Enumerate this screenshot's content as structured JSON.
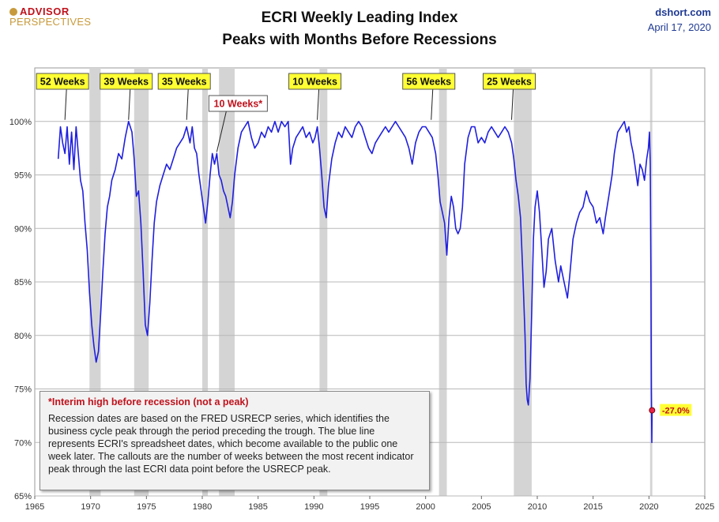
{
  "logo": {
    "line1": "ADVISOR",
    "line2": "PERSPECTIVES"
  },
  "header": {
    "title_line1": "ECRI Weekly Leading Index",
    "title_line2": "Peaks with Months Before Recessions",
    "site": "dshort.com",
    "date": "April 17, 2020"
  },
  "note": {
    "title": "*Interim high before recession (not a peak)",
    "body": "Recession dates are based on the FRED USRECP series, which identifies the business cycle peak through the period preceding the trough. The blue line represents ECRI's spreadsheet dates, which become available to the public one week later. The callouts are the number of weeks between the most recent indicator peak through the last ECRI data point before the USRECP peak."
  },
  "colors": {
    "line": "#1f1fe0",
    "recession": "#d4d4d4",
    "callout_bg": "#ffff33",
    "callout_alt_bg": "#ffffff",
    "callout_alt_text": "#c0121c",
    "last_point": "#e8244a",
    "last_label_bg": "#ffff33",
    "last_label_text": "#c0121c"
  },
  "chart_data": {
    "type": "line",
    "title": "ECRI Weekly Leading Index Peaks with Months Before Recessions",
    "xlim": [
      1965,
      2025
    ],
    "ylim": [
      65,
      105
    ],
    "x_ticks": [
      1965,
      1970,
      1975,
      1980,
      1985,
      1990,
      1995,
      2000,
      2005,
      2010,
      2015,
      2020,
      2025
    ],
    "x_tick_labels": [
      "1965",
      "1970",
      "1975",
      "1980",
      "1985",
      "1990",
      "1995",
      "2000",
      "2005",
      "2010",
      "2015",
      "2020",
      "2025"
    ],
    "y_ticks": [
      65,
      70,
      75,
      80,
      85,
      90,
      95,
      100
    ],
    "y_tick_labels": [
      "65%",
      "70%",
      "75%",
      "80%",
      "85%",
      "90%",
      "95%",
      "100%"
    ],
    "grid": true,
    "recessions": [
      [
        1969.9,
        1970.9
      ],
      [
        1973.9,
        1975.2
      ],
      [
        1980.0,
        1980.5
      ],
      [
        1981.5,
        1982.9
      ],
      [
        1990.5,
        1991.2
      ],
      [
        2001.2,
        2001.9
      ],
      [
        2007.9,
        2009.5
      ],
      [
        2020.1,
        2020.3
      ]
    ],
    "series": [
      {
        "points": [
          [
            1967.1,
            96.5
          ],
          [
            1967.3,
            99.5
          ],
          [
            1967.5,
            98
          ],
          [
            1967.7,
            97
          ],
          [
            1967.9,
            99.5
          ],
          [
            1968.1,
            96
          ],
          [
            1968.3,
            99
          ],
          [
            1968.5,
            95.5
          ],
          [
            1968.7,
            99.5
          ],
          [
            1968.9,
            97
          ],
          [
            1969.1,
            94.5
          ],
          [
            1969.3,
            93.5
          ],
          [
            1969.5,
            90.5
          ],
          [
            1969.7,
            88
          ],
          [
            1969.9,
            84
          ],
          [
            1970.1,
            81
          ],
          [
            1970.3,
            79
          ],
          [
            1970.5,
            77.5
          ],
          [
            1970.7,
            78.5
          ],
          [
            1970.9,
            82
          ],
          [
            1971.1,
            86
          ],
          [
            1971.3,
            89.5
          ],
          [
            1971.5,
            92
          ],
          [
            1971.7,
            93
          ],
          [
            1971.9,
            94.5
          ],
          [
            1972.2,
            95.5
          ],
          [
            1972.5,
            97
          ],
          [
            1972.8,
            96.5
          ],
          [
            1973.1,
            98.5
          ],
          [
            1973.4,
            100
          ],
          [
            1973.7,
            99
          ],
          [
            1973.9,
            96.5
          ],
          [
            1974.1,
            93
          ],
          [
            1974.3,
            93.5
          ],
          [
            1974.5,
            90.5
          ],
          [
            1974.7,
            86
          ],
          [
            1974.9,
            81
          ],
          [
            1975.1,
            80
          ],
          [
            1975.3,
            83
          ],
          [
            1975.5,
            87
          ],
          [
            1975.7,
            90.5
          ],
          [
            1975.9,
            92.5
          ],
          [
            1976.2,
            94
          ],
          [
            1976.5,
            95
          ],
          [
            1976.8,
            96
          ],
          [
            1977.1,
            95.5
          ],
          [
            1977.4,
            96.5
          ],
          [
            1977.7,
            97.5
          ],
          [
            1978.0,
            98
          ],
          [
            1978.3,
            98.5
          ],
          [
            1978.6,
            99.5
          ],
          [
            1978.9,
            98
          ],
          [
            1979.1,
            99.5
          ],
          [
            1979.3,
            97.5
          ],
          [
            1979.5,
            97
          ],
          [
            1979.7,
            95
          ],
          [
            1979.9,
            93.5
          ],
          [
            1980.1,
            92
          ],
          [
            1980.3,
            90.5
          ],
          [
            1980.5,
            92.5
          ],
          [
            1980.7,
            95
          ],
          [
            1980.9,
            97
          ],
          [
            1981.1,
            96
          ],
          [
            1981.3,
            97
          ],
          [
            1981.5,
            95
          ],
          [
            1981.7,
            94.5
          ],
          [
            1981.9,
            93.5
          ],
          [
            1982.1,
            93
          ],
          [
            1982.3,
            92
          ],
          [
            1982.5,
            91
          ],
          [
            1982.7,
            92.5
          ],
          [
            1982.9,
            95
          ],
          [
            1983.2,
            97.5
          ],
          [
            1983.5,
            99
          ],
          [
            1983.8,
            99.5
          ],
          [
            1984.1,
            100
          ],
          [
            1984.4,
            98.5
          ],
          [
            1984.7,
            97.5
          ],
          [
            1985.0,
            98
          ],
          [
            1985.3,
            99
          ],
          [
            1985.6,
            98.5
          ],
          [
            1985.9,
            99.5
          ],
          [
            1986.2,
            99
          ],
          [
            1986.5,
            100
          ],
          [
            1986.8,
            99
          ],
          [
            1987.1,
            100
          ],
          [
            1987.4,
            99.5
          ],
          [
            1987.7,
            100
          ],
          [
            1987.9,
            96
          ],
          [
            1988.1,
            97.5
          ],
          [
            1988.4,
            98.5
          ],
          [
            1988.7,
            99
          ],
          [
            1989.0,
            99.5
          ],
          [
            1989.3,
            98.5
          ],
          [
            1989.6,
            99
          ],
          [
            1989.9,
            98
          ],
          [
            1990.1,
            98.5
          ],
          [
            1990.3,
            99.5
          ],
          [
            1990.5,
            97.5
          ],
          [
            1990.7,
            95
          ],
          [
            1990.9,
            92
          ],
          [
            1991.1,
            91
          ],
          [
            1991.3,
            94
          ],
          [
            1991.6,
            96.5
          ],
          [
            1991.9,
            98
          ],
          [
            1992.2,
            99
          ],
          [
            1992.5,
            98.5
          ],
          [
            1992.8,
            99.5
          ],
          [
            1993.1,
            99
          ],
          [
            1993.4,
            98.5
          ],
          [
            1993.7,
            99.5
          ],
          [
            1994.0,
            100
          ],
          [
            1994.3,
            99.5
          ],
          [
            1994.6,
            98.5
          ],
          [
            1994.9,
            97.5
          ],
          [
            1995.2,
            97
          ],
          [
            1995.5,
            98
          ],
          [
            1995.8,
            98.5
          ],
          [
            1996.1,
            99
          ],
          [
            1996.4,
            99.5
          ],
          [
            1996.7,
            99
          ],
          [
            1997.0,
            99.5
          ],
          [
            1997.3,
            100
          ],
          [
            1997.6,
            99.5
          ],
          [
            1997.9,
            99
          ],
          [
            1998.2,
            98.5
          ],
          [
            1998.5,
            97.5
          ],
          [
            1998.8,
            96
          ],
          [
            1999.1,
            98
          ],
          [
            1999.4,
            99
          ],
          [
            1999.7,
            99.5
          ],
          [
            2000.0,
            99.5
          ],
          [
            2000.3,
            99
          ],
          [
            2000.6,
            98.5
          ],
          [
            2000.9,
            97
          ],
          [
            2001.1,
            95
          ],
          [
            2001.3,
            92.5
          ],
          [
            2001.5,
            91.5
          ],
          [
            2001.7,
            90.5
          ],
          [
            2001.9,
            87.5
          ],
          [
            2002.1,
            91
          ],
          [
            2002.3,
            93
          ],
          [
            2002.5,
            92
          ],
          [
            2002.7,
            90
          ],
          [
            2002.9,
            89.5
          ],
          [
            2003.1,
            90
          ],
          [
            2003.3,
            92
          ],
          [
            2003.5,
            96
          ],
          [
            2003.8,
            98.5
          ],
          [
            2004.1,
            99.5
          ],
          [
            2004.4,
            99.5
          ],
          [
            2004.7,
            98
          ],
          [
            2005.0,
            98.5
          ],
          [
            2005.3,
            98
          ],
          [
            2005.6,
            99
          ],
          [
            2005.9,
            99.5
          ],
          [
            2006.2,
            99
          ],
          [
            2006.5,
            98.5
          ],
          [
            2006.8,
            99
          ],
          [
            2007.1,
            99.5
          ],
          [
            2007.4,
            99
          ],
          [
            2007.7,
            98
          ],
          [
            2007.9,
            96.5
          ],
          [
            2008.1,
            94.5
          ],
          [
            2008.3,
            93
          ],
          [
            2008.5,
            91
          ],
          [
            2008.7,
            86
          ],
          [
            2008.9,
            80
          ],
          [
            2009.0,
            75.5
          ],
          [
            2009.1,
            74
          ],
          [
            2009.2,
            73.5
          ],
          [
            2009.35,
            76
          ],
          [
            2009.5,
            82
          ],
          [
            2009.65,
            89
          ],
          [
            2009.8,
            92
          ],
          [
            2010.0,
            93.5
          ],
          [
            2010.2,
            91.5
          ],
          [
            2010.4,
            88
          ],
          [
            2010.6,
            84.5
          ],
          [
            2010.8,
            86
          ],
          [
            2011.0,
            89
          ],
          [
            2011.3,
            90
          ],
          [
            2011.6,
            87
          ],
          [
            2011.9,
            85
          ],
          [
            2012.1,
            86.5
          ],
          [
            2012.4,
            85
          ],
          [
            2012.7,
            83.5
          ],
          [
            2012.9,
            85.5
          ],
          [
            2013.2,
            89
          ],
          [
            2013.5,
            90.5
          ],
          [
            2013.8,
            91.5
          ],
          [
            2014.1,
            92
          ],
          [
            2014.4,
            93.5
          ],
          [
            2014.7,
            92.5
          ],
          [
            2015.0,
            92
          ],
          [
            2015.3,
            90.5
          ],
          [
            2015.6,
            91
          ],
          [
            2015.9,
            89.5
          ],
          [
            2016.1,
            91
          ],
          [
            2016.4,
            93
          ],
          [
            2016.7,
            95
          ],
          [
            2016.9,
            97
          ],
          [
            2017.2,
            99
          ],
          [
            2017.5,
            99.5
          ],
          [
            2017.8,
            100
          ],
          [
            2018.0,
            99
          ],
          [
            2018.2,
            99.5
          ],
          [
            2018.4,
            98
          ],
          [
            2018.6,
            97
          ],
          [
            2018.8,
            95.5
          ],
          [
            2019.0,
            94
          ],
          [
            2019.2,
            96
          ],
          [
            2019.4,
            95.5
          ],
          [
            2019.6,
            94.5
          ],
          [
            2019.8,
            96.5
          ],
          [
            2019.95,
            97.5
          ],
          [
            2020.05,
            99
          ],
          [
            2020.12,
            96
          ],
          [
            2020.18,
            85
          ],
          [
            2020.22,
            75
          ],
          [
            2020.26,
            70
          ],
          [
            2020.28,
            73
          ]
        ]
      }
    ],
    "callouts": [
      {
        "label": "52 Weeks",
        "x": 1967.7,
        "y": 100.0,
        "style": "main"
      },
      {
        "label": "39 Weeks",
        "x": 1973.4,
        "y": 100.0,
        "style": "main"
      },
      {
        "label": "35 Weeks",
        "x": 1978.6,
        "y": 100.0,
        "style": "main"
      },
      {
        "label": "10 Weeks*",
        "x": 1981.3,
        "y": 97.0,
        "style": "interim"
      },
      {
        "label": "10 Weeks",
        "x": 1990.3,
        "y": 100.0,
        "style": "main"
      },
      {
        "label": "56 Weeks",
        "x": 2000.5,
        "y": 100.0,
        "style": "main"
      },
      {
        "label": "25 Weeks",
        "x": 2007.7,
        "y": 100.0,
        "style": "main"
      }
    ],
    "last_point": {
      "x": 2020.28,
      "y": 73.0,
      "label": "-27.0%"
    }
  }
}
